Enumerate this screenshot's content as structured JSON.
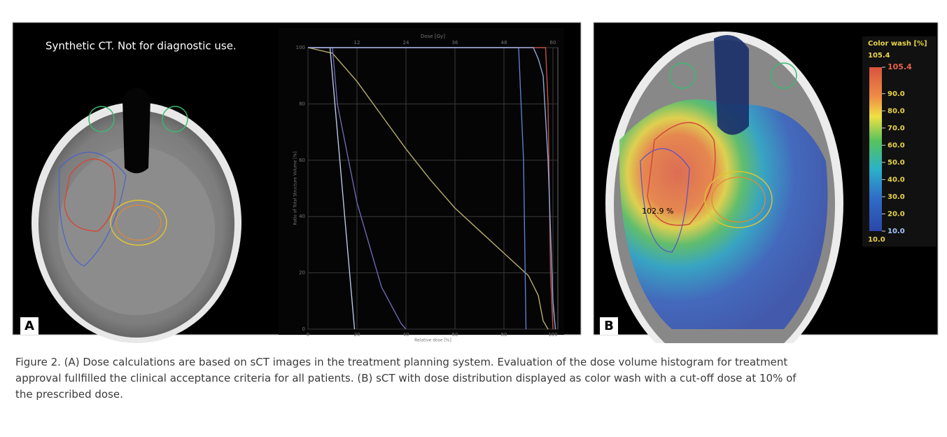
{
  "panel_a": {
    "label": "A",
    "note": "Synthetic CT. Not for diagnostic use."
  },
  "chart_data": {
    "type": "line",
    "x2label": "Dose [Gy]",
    "xlabel": "Relative dose [%]",
    "ylabel": "Ratio of Total Structure Volume [%]",
    "xlim": [
      0,
      102
    ],
    "x2lim": [
      0,
      61.2
    ],
    "ylim": [
      0,
      100
    ],
    "xticks": [
      0,
      20,
      40,
      60,
      80,
      100
    ],
    "x2ticks": [
      12,
      24,
      36,
      48,
      60
    ],
    "yticks": [
      0,
      20,
      40,
      60,
      80,
      100
    ],
    "grid": true,
    "series": [
      {
        "color": "#b8ad6a",
        "x": [
          0,
          10,
          20,
          30,
          40,
          50,
          60,
          70,
          80,
          90,
          94,
          96,
          98
        ],
        "values": [
          100,
          98,
          88,
          76,
          64,
          53,
          43,
          35,
          27,
          19,
          12,
          3,
          0
        ]
      },
      {
        "color": "#b9c8e6",
        "x": [
          0,
          9,
          11,
          14,
          17,
          19
        ],
        "values": [
          100,
          100,
          80,
          50,
          20,
          0
        ]
      },
      {
        "color": "#6b68b0",
        "x": [
          0,
          10,
          12,
          20,
          30,
          38,
          40
        ],
        "values": [
          100,
          100,
          80,
          45,
          15,
          2,
          0
        ]
      },
      {
        "color": "#5a7fd0",
        "x": [
          0,
          86,
          88,
          89
        ],
        "values": [
          100,
          100,
          60,
          0
        ]
      },
      {
        "color": "#c0504d",
        "x": [
          0,
          97,
          98,
          99,
          100
        ],
        "values": [
          100,
          100,
          80,
          20,
          0
        ]
      },
      {
        "color": "#8fa8d8",
        "x": [
          0,
          92,
          94,
          96,
          98,
          100,
          101
        ],
        "values": [
          100,
          100,
          96,
          90,
          60,
          10,
          0
        ]
      }
    ]
  },
  "panel_b": {
    "label": "B",
    "annotation": "102.9 %",
    "colorbar": {
      "title": "Color wash [%]",
      "max_label": "105.4",
      "min_label": "10.0",
      "lim": [
        10,
        105.4
      ],
      "ticks": [
        105.4,
        {
          "value": 90,
          "label": "90.0"
        },
        {
          "value": 80,
          "label": "80.0"
        },
        {
          "value": 70,
          "label": "70.0"
        },
        {
          "value": 60,
          "label": "60.0"
        },
        {
          "value": 50,
          "label": "50.0"
        },
        {
          "value": 40,
          "label": "40.0"
        },
        {
          "value": 30,
          "label": "30.0"
        },
        {
          "value": 20,
          "label": "20.0"
        },
        {
          "value": 10,
          "label": "10.0"
        }
      ]
    }
  },
  "caption": [
    "Figure 2. (A) Dose calculations are based on sCT images in the treatment planning system. Evaluation of the dose volume histogram for treatment",
    "approval fullfilled the clinical acceptance criteria for all patients. (B) sCT with dose distribution displayed as color wash with a cut-off dose at 10% of",
    "the prescribed dose."
  ]
}
